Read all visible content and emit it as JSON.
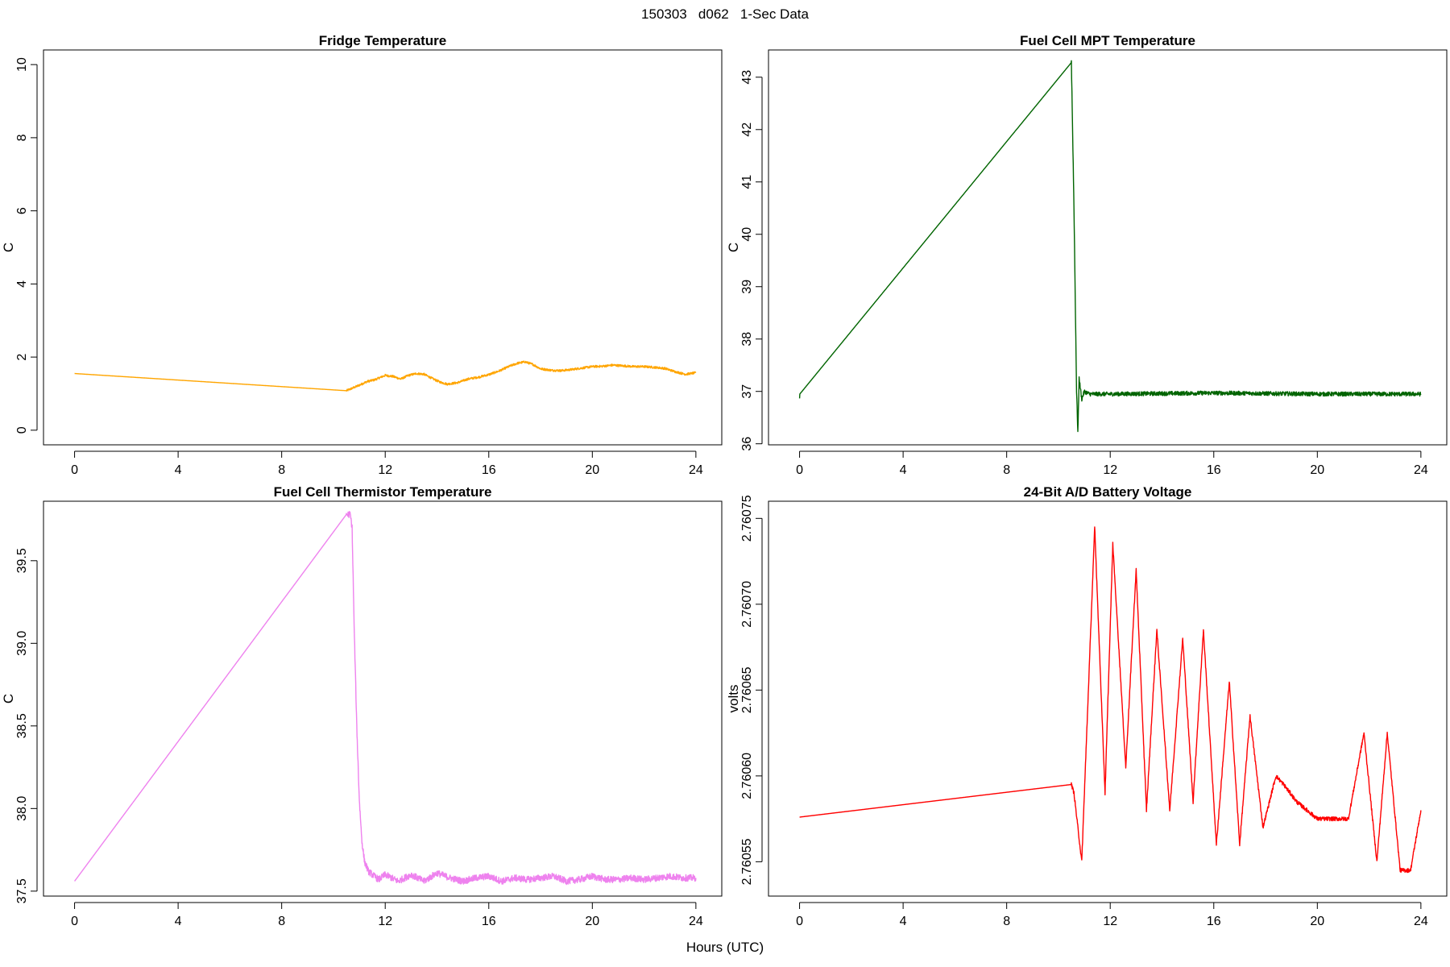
{
  "figure": {
    "title": "150303   d062   1-Sec Data",
    "xlabel": "Hours (UTC)"
  },
  "chart_data": [
    {
      "type": "line",
      "title": "Fridge Temperature",
      "xlabel": "",
      "ylabel": "C",
      "xlim": [
        -1.2,
        25
      ],
      "ylim": [
        -0.4,
        10.4
      ],
      "xticks": [
        0,
        4,
        8,
        12,
        16,
        20,
        24
      ],
      "yticks": [
        0,
        2,
        4,
        6,
        8,
        10
      ],
      "ytick_labels": [
        "0",
        "2",
        "4",
        "6",
        "8",
        "10"
      ],
      "color": "#FFA500",
      "series": [
        {
          "x": [
            0,
            10.5,
            10.9,
            11.3,
            11.6,
            12.0,
            12.3,
            12.6,
            12.9,
            13.2,
            13.5,
            13.8,
            14.1,
            14.4,
            14.8,
            15.2,
            15.6,
            16.0,
            16.4,
            16.8,
            17.1,
            17.4,
            17.7,
            18.0,
            18.4,
            18.8,
            19.2,
            19.6,
            20.0,
            20.4,
            20.8,
            21.2,
            21.6,
            22.0,
            22.4,
            22.8,
            23.2,
            23.6,
            24.0
          ],
          "y": [
            1.55,
            1.08,
            1.2,
            1.33,
            1.38,
            1.5,
            1.47,
            1.4,
            1.5,
            1.55,
            1.53,
            1.42,
            1.32,
            1.26,
            1.3,
            1.4,
            1.45,
            1.52,
            1.62,
            1.75,
            1.83,
            1.87,
            1.8,
            1.68,
            1.64,
            1.63,
            1.66,
            1.7,
            1.74,
            1.75,
            1.78,
            1.76,
            1.74,
            1.74,
            1.72,
            1.69,
            1.6,
            1.53,
            1.57
          ],
          "noise": 0.03
        }
      ]
    },
    {
      "type": "line",
      "title": "Fuel Cell MPT Temperature",
      "xlabel": "",
      "ylabel": "C",
      "xlim": [
        -1.2,
        25
      ],
      "ylim": [
        35.98,
        43.52
      ],
      "xticks": [
        0,
        4,
        8,
        12,
        16,
        20,
        24
      ],
      "yticks": [
        36,
        37,
        38,
        39,
        40,
        41,
        42,
        43
      ],
      "ytick_labels": [
        "36",
        "37",
        "38",
        "39",
        "40",
        "41",
        "42",
        "43"
      ],
      "color": "#006400",
      "series": [
        {
          "x": [
            0,
            0.01,
            10.5,
            10.6,
            10.7,
            10.75,
            10.8,
            10.9,
            11.0,
            11.2,
            12,
            16,
            20,
            24
          ],
          "y": [
            36.88,
            36.95,
            43.28,
            40.5,
            37.0,
            36.22,
            37.25,
            36.85,
            37.0,
            36.95,
            36.95,
            36.97,
            36.95,
            36.95
          ],
          "noise": 0.04
        }
      ]
    },
    {
      "type": "line",
      "title": "Fuel Cell Thermistor Temperature",
      "xlabel": "",
      "ylabel": "C",
      "xlim": [
        -1.2,
        25
      ],
      "ylim": [
        37.47,
        39.86
      ],
      "xticks": [
        0,
        4,
        8,
        12,
        16,
        20,
        24
      ],
      "yticks": [
        37.5,
        38.0,
        38.5,
        39.0,
        39.5
      ],
      "ytick_labels": [
        "37.5",
        "38.0",
        "38.5",
        "39.0",
        "39.5"
      ],
      "color": "#EE82EE",
      "series": [
        {
          "x": [
            0,
            10.5,
            10.65,
            10.72,
            10.8,
            10.9,
            11.0,
            11.1,
            11.2,
            11.35,
            11.5,
            11.75,
            12.0,
            12.5,
            13.0,
            13.5,
            14.0,
            14.5,
            15.0,
            15.5,
            16.0,
            16.5,
            17.0,
            17.5,
            18.0,
            18.5,
            19.0,
            19.5,
            20.0,
            20.5,
            21.0,
            21.5,
            22.0,
            22.5,
            23.0,
            23.5,
            24.0
          ],
          "y": [
            37.56,
            39.78,
            39.78,
            39.7,
            39.1,
            38.5,
            38.05,
            37.8,
            37.68,
            37.62,
            37.6,
            37.57,
            37.6,
            37.56,
            37.6,
            37.56,
            37.61,
            37.58,
            37.56,
            37.58,
            37.59,
            37.56,
            37.58,
            37.57,
            37.58,
            37.59,
            37.56,
            37.57,
            37.59,
            37.57,
            37.57,
            37.58,
            37.57,
            37.58,
            37.59,
            37.58,
            37.58
          ],
          "noise": 0.02
        }
      ]
    },
    {
      "type": "line",
      "title": "24-Bit A/D Battery Voltage",
      "xlabel": "",
      "ylabel": "volts",
      "xlim": [
        -1.2,
        25
      ],
      "ylim": [
        2.76053,
        2.76076
      ],
      "xticks": [
        0,
        4,
        8,
        12,
        16,
        20,
        24
      ],
      "yticks": [
        2.76055,
        2.7606,
        2.76065,
        2.7607,
        2.76075
      ],
      "ytick_labels": [
        "2.76055",
        "2.76060",
        "2.76065",
        "2.76070",
        "2.76075"
      ],
      "color": "#FF0000",
      "series": [
        {
          "x": [
            0,
            10.5,
            10.6,
            10.9,
            11.4,
            11.8,
            12.1,
            12.6,
            13.0,
            13.4,
            13.8,
            14.3,
            14.8,
            15.2,
            15.6,
            16.1,
            16.6,
            17.0,
            17.4,
            17.9,
            18.4,
            18.7,
            19.2,
            19.6,
            20.0,
            20.4,
            20.8,
            21.2,
            21.8,
            22.3,
            22.7,
            23.2,
            23.6,
            24.0
          ],
          "y": [
            2.760576,
            2.760595,
            2.76059,
            2.76055,
            2.760745,
            2.76059,
            2.760735,
            2.760605,
            2.76072,
            2.76058,
            2.760685,
            2.76058,
            2.76068,
            2.760585,
            2.760685,
            2.76056,
            2.760655,
            2.76056,
            2.760635,
            2.76057,
            2.7606,
            2.760595,
            2.760585,
            2.76058,
            2.760575,
            2.760575,
            2.760575,
            2.760575,
            2.760625,
            2.76055,
            2.760625,
            2.760545,
            2.760545,
            2.76058
          ],
          "noise": 1.2e-06
        }
      ]
    }
  ]
}
